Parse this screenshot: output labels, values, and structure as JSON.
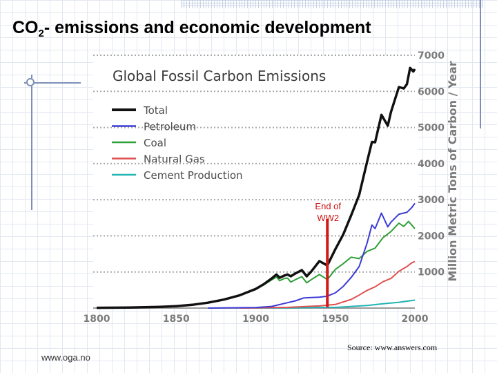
{
  "slide": {
    "title_prefix": "CO",
    "title_subscript": "2",
    "title_rest": "- emissions and economic development",
    "website": "www.oga.no",
    "source": "Source: www.answers.com"
  },
  "chart_data": {
    "type": "line",
    "title": "Global Fossil Carbon Emissions",
    "xlabel": "",
    "ylabel": "Million Metric Tons of Carbon / Year",
    "xlim": [
      1800,
      2000
    ],
    "ylim": [
      0,
      7000
    ],
    "x_ticks": [
      "1800",
      "1850",
      "1900",
      "1950",
      "2000"
    ],
    "y_ticks": [
      "1000",
      "2000",
      "3000",
      "4000",
      "5000",
      "6000",
      "7000"
    ],
    "grid": true,
    "legend_position": "top-left",
    "series": [
      {
        "name": "Total",
        "color": "#111111",
        "points": [
          [
            1800,
            8
          ],
          [
            1820,
            14
          ],
          [
            1840,
            35
          ],
          [
            1850,
            54
          ],
          [
            1860,
            90
          ],
          [
            1870,
            150
          ],
          [
            1880,
            235
          ],
          [
            1890,
            355
          ],
          [
            1900,
            530
          ],
          [
            1905,
            660
          ],
          [
            1910,
            820
          ],
          [
            1913,
            930
          ],
          [
            1915,
            840
          ],
          [
            1918,
            900
          ],
          [
            1920,
            930
          ],
          [
            1922,
            880
          ],
          [
            1925,
            960
          ],
          [
            1929,
            1050
          ],
          [
            1932,
            880
          ],
          [
            1935,
            1020
          ],
          [
            1940,
            1300
          ],
          [
            1945,
            1180
          ],
          [
            1950,
            1630
          ],
          [
            1955,
            2040
          ],
          [
            1960,
            2570
          ],
          [
            1965,
            3130
          ],
          [
            1970,
            4050
          ],
          [
            1973,
            4600
          ],
          [
            1975,
            4590
          ],
          [
            1979,
            5350
          ],
          [
            1983,
            5050
          ],
          [
            1985,
            5430
          ],
          [
            1990,
            6120
          ],
          [
            1993,
            6080
          ],
          [
            1995,
            6200
          ],
          [
            1997,
            6650
          ],
          [
            1999,
            6550
          ],
          [
            2000,
            6620
          ]
        ]
      },
      {
        "name": "Petroleum",
        "color": "#3b3bd6",
        "points": [
          [
            1870,
            0
          ],
          [
            1900,
            15
          ],
          [
            1910,
            45
          ],
          [
            1920,
            150
          ],
          [
            1925,
            200
          ],
          [
            1930,
            280
          ],
          [
            1935,
            290
          ],
          [
            1940,
            300
          ],
          [
            1945,
            330
          ],
          [
            1950,
            420
          ],
          [
            1955,
            600
          ],
          [
            1960,
            850
          ],
          [
            1965,
            1150
          ],
          [
            1970,
            1800
          ],
          [
            1973,
            2300
          ],
          [
            1975,
            2200
          ],
          [
            1979,
            2630
          ],
          [
            1983,
            2250
          ],
          [
            1985,
            2380
          ],
          [
            1990,
            2600
          ],
          [
            1995,
            2650
          ],
          [
            1998,
            2780
          ],
          [
            2000,
            2900
          ]
        ]
      },
      {
        "name": "Coal",
        "color": "#2e9e36",
        "points": [
          [
            1800,
            8
          ],
          [
            1820,
            14
          ],
          [
            1840,
            35
          ],
          [
            1850,
            54
          ],
          [
            1860,
            90
          ],
          [
            1870,
            150
          ],
          [
            1880,
            235
          ],
          [
            1890,
            350
          ],
          [
            1900,
            510
          ],
          [
            1905,
            640
          ],
          [
            1910,
            780
          ],
          [
            1913,
            860
          ],
          [
            1915,
            760
          ],
          [
            1918,
            820
          ],
          [
            1920,
            830
          ],
          [
            1922,
            720
          ],
          [
            1925,
            790
          ],
          [
            1929,
            870
          ],
          [
            1932,
            700
          ],
          [
            1935,
            790
          ],
          [
            1940,
            930
          ],
          [
            1945,
            790
          ],
          [
            1950,
            1070
          ],
          [
            1955,
            1230
          ],
          [
            1960,
            1410
          ],
          [
            1965,
            1370
          ],
          [
            1970,
            1570
          ],
          [
            1975,
            1660
          ],
          [
            1980,
            1950
          ],
          [
            1985,
            2120
          ],
          [
            1990,
            2350
          ],
          [
            1993,
            2260
          ],
          [
            1996,
            2400
          ],
          [
            1998,
            2300
          ],
          [
            2000,
            2200
          ]
        ]
      },
      {
        "name": "Natural Gas",
        "color": "#e05050",
        "points": [
          [
            1890,
            0
          ],
          [
            1900,
            5
          ],
          [
            1920,
            20
          ],
          [
            1930,
            40
          ],
          [
            1940,
            60
          ],
          [
            1945,
            80
          ],
          [
            1950,
            100
          ],
          [
            1955,
            170
          ],
          [
            1960,
            240
          ],
          [
            1965,
            360
          ],
          [
            1970,
            490
          ],
          [
            1975,
            590
          ],
          [
            1980,
            730
          ],
          [
            1985,
            820
          ],
          [
            1990,
            1020
          ],
          [
            1995,
            1150
          ],
          [
            1998,
            1250
          ],
          [
            2000,
            1290
          ]
        ]
      },
      {
        "name": "Cement Production",
        "color": "#22b3b3",
        "points": [
          [
            1900,
            0
          ],
          [
            1920,
            5
          ],
          [
            1930,
            10
          ],
          [
            1940,
            20
          ],
          [
            1950,
            20
          ],
          [
            1955,
            30
          ],
          [
            1960,
            45
          ],
          [
            1970,
            70
          ],
          [
            1980,
            120
          ],
          [
            1990,
            160
          ],
          [
            2000,
            220
          ]
        ]
      }
    ],
    "annotations": [
      {
        "text_lines": [
          "End of",
          "WW2"
        ],
        "x": 1945
      }
    ]
  }
}
